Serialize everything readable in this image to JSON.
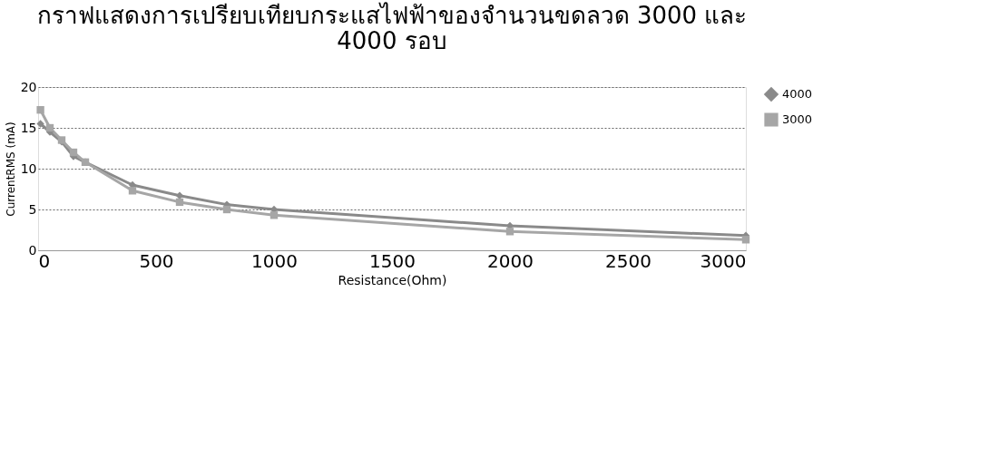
{
  "chart_data": {
    "type": "line",
    "title": "กราฟแสดงการเปรียบเทียบกระแสไฟฟ้าของจำนวนขดลวด 3000 และ 4000 รอบ",
    "xlabel": "Resistance(Ohm)",
    "ylabel": "CurrentRMS (mA)",
    "x": [
      10,
      50,
      100,
      150,
      200,
      400,
      600,
      800,
      1000,
      2000,
      3000
    ],
    "series": [
      {
        "name": "4000",
        "color": "#8a8a8a",
        "marker": "diamond",
        "values": [
          15.5,
          14.5,
          13.3,
          11.5,
          10.8,
          8.0,
          6.7,
          5.6,
          5.0,
          3.0,
          1.8
        ]
      },
      {
        "name": "3000",
        "color": "#a6a6a6",
        "marker": "square",
        "values": [
          17.2,
          15.0,
          13.5,
          12.0,
          10.8,
          7.3,
          5.9,
          5.0,
          4.3,
          2.3,
          1.3
        ]
      }
    ],
    "xlim": [
      0,
      3000
    ],
    "xticks": [
      0,
      500,
      1000,
      1500,
      2000,
      2500,
      3000
    ],
    "ylim": [
      0,
      20
    ],
    "yticks": [
      0,
      5,
      10,
      15,
      20
    ],
    "grid": "y",
    "legend": "right"
  }
}
